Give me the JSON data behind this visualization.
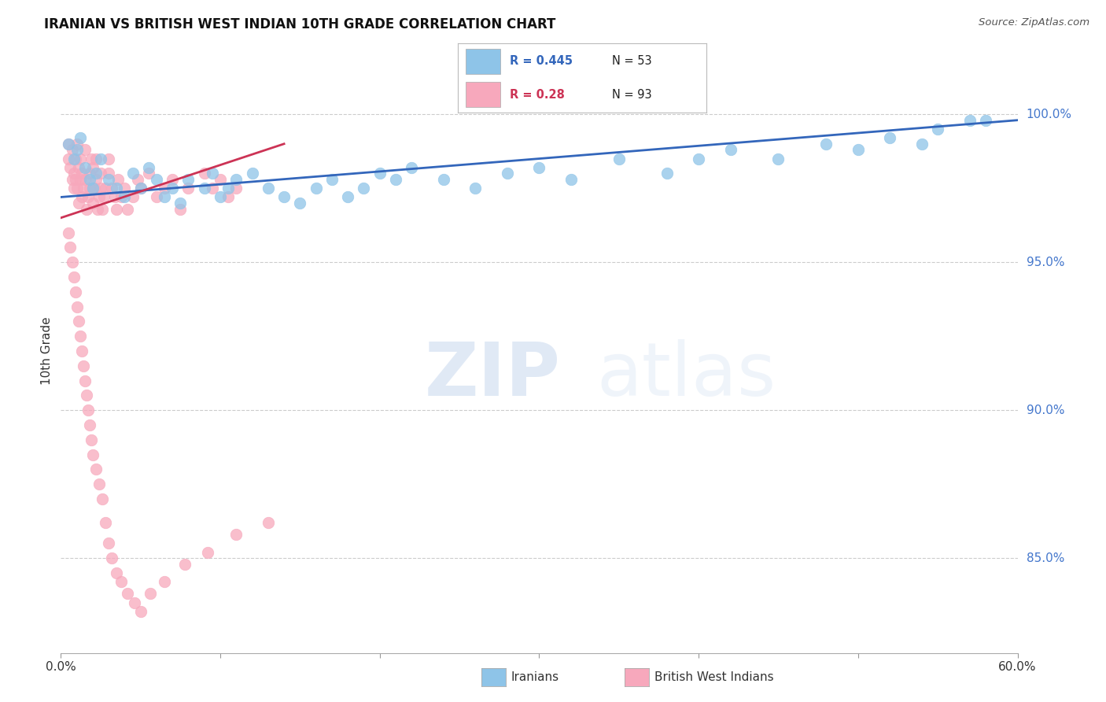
{
  "title": "IRANIAN VS BRITISH WEST INDIAN 10TH GRADE CORRELATION CHART",
  "source": "Source: ZipAtlas.com",
  "ylabel": "10th Grade",
  "ytick_labels": [
    "100.0%",
    "95.0%",
    "90.0%",
    "85.0%"
  ],
  "ytick_values": [
    1.0,
    0.95,
    0.9,
    0.85
  ],
  "xlim": [
    0.0,
    0.6
  ],
  "ylim": [
    0.818,
    1.022
  ],
  "iranian_R": 0.445,
  "iranian_N": 53,
  "bwi_R": 0.28,
  "bwi_N": 93,
  "iranian_color": "#8ec4e8",
  "bwi_color": "#f7a8bc",
  "iranian_line_color": "#3366bb",
  "bwi_line_color": "#cc3355",
  "watermark_zip": "ZIP",
  "watermark_atlas": "atlas",
  "background_color": "#ffffff",
  "grid_color": "#cccccc",
  "iranian_x": [
    0.005,
    0.008,
    0.01,
    0.012,
    0.015,
    0.018,
    0.02,
    0.022,
    0.025,
    0.03,
    0.035,
    0.04,
    0.045,
    0.05,
    0.055,
    0.06,
    0.065,
    0.07,
    0.075,
    0.08,
    0.09,
    0.095,
    0.1,
    0.105,
    0.11,
    0.12,
    0.13,
    0.14,
    0.15,
    0.16,
    0.17,
    0.18,
    0.19,
    0.2,
    0.21,
    0.22,
    0.24,
    0.26,
    0.28,
    0.3,
    0.32,
    0.35,
    0.38,
    0.4,
    0.42,
    0.45,
    0.48,
    0.5,
    0.52,
    0.54,
    0.55,
    0.57,
    0.58
  ],
  "iranian_y": [
    0.99,
    0.985,
    0.988,
    0.992,
    0.982,
    0.978,
    0.975,
    0.98,
    0.985,
    0.978,
    0.975,
    0.972,
    0.98,
    0.975,
    0.982,
    0.978,
    0.972,
    0.975,
    0.97,
    0.978,
    0.975,
    0.98,
    0.972,
    0.975,
    0.978,
    0.98,
    0.975,
    0.972,
    0.97,
    0.975,
    0.978,
    0.972,
    0.975,
    0.98,
    0.978,
    0.982,
    0.978,
    0.975,
    0.98,
    0.982,
    0.978,
    0.985,
    0.98,
    0.985,
    0.988,
    0.985,
    0.99,
    0.988,
    0.992,
    0.99,
    0.995,
    0.998,
    0.998
  ],
  "bwi_x": [
    0.005,
    0.005,
    0.006,
    0.007,
    0.007,
    0.008,
    0.008,
    0.009,
    0.009,
    0.01,
    0.01,
    0.011,
    0.011,
    0.012,
    0.012,
    0.013,
    0.013,
    0.014,
    0.015,
    0.015,
    0.016,
    0.017,
    0.018,
    0.018,
    0.019,
    0.02,
    0.02,
    0.021,
    0.022,
    0.022,
    0.023,
    0.024,
    0.025,
    0.025,
    0.026,
    0.027,
    0.028,
    0.03,
    0.03,
    0.032,
    0.034,
    0.035,
    0.036,
    0.038,
    0.04,
    0.042,
    0.045,
    0.048,
    0.05,
    0.055,
    0.06,
    0.065,
    0.07,
    0.075,
    0.08,
    0.09,
    0.095,
    0.1,
    0.105,
    0.11,
    0.005,
    0.006,
    0.007,
    0.008,
    0.009,
    0.01,
    0.011,
    0.012,
    0.013,
    0.014,
    0.015,
    0.016,
    0.017,
    0.018,
    0.019,
    0.02,
    0.022,
    0.024,
    0.026,
    0.028,
    0.03,
    0.032,
    0.035,
    0.038,
    0.042,
    0.046,
    0.05,
    0.056,
    0.065,
    0.078,
    0.092,
    0.11,
    0.13
  ],
  "bwi_y": [
    0.99,
    0.985,
    0.982,
    0.978,
    0.988,
    0.98,
    0.975,
    0.985,
    0.978,
    0.99,
    0.975,
    0.982,
    0.97,
    0.978,
    0.985,
    0.98,
    0.972,
    0.975,
    0.988,
    0.978,
    0.968,
    0.972,
    0.975,
    0.98,
    0.985,
    0.97,
    0.982,
    0.975,
    0.978,
    0.985,
    0.968,
    0.972,
    0.975,
    0.98,
    0.968,
    0.972,
    0.975,
    0.98,
    0.985,
    0.975,
    0.972,
    0.968,
    0.978,
    0.972,
    0.975,
    0.968,
    0.972,
    0.978,
    0.975,
    0.98,
    0.972,
    0.975,
    0.978,
    0.968,
    0.975,
    0.98,
    0.975,
    0.978,
    0.972,
    0.975,
    0.96,
    0.955,
    0.95,
    0.945,
    0.94,
    0.935,
    0.93,
    0.925,
    0.92,
    0.915,
    0.91,
    0.905,
    0.9,
    0.895,
    0.89,
    0.885,
    0.88,
    0.875,
    0.87,
    0.862,
    0.855,
    0.85,
    0.845,
    0.842,
    0.838,
    0.835,
    0.832,
    0.838,
    0.842,
    0.848,
    0.852,
    0.858,
    0.862
  ],
  "iranian_line_x": [
    0.0,
    0.6
  ],
  "iranian_line_y": [
    0.972,
    0.998
  ],
  "bwi_line_x": [
    0.0,
    0.14
  ],
  "bwi_line_y": [
    0.965,
    0.99
  ]
}
